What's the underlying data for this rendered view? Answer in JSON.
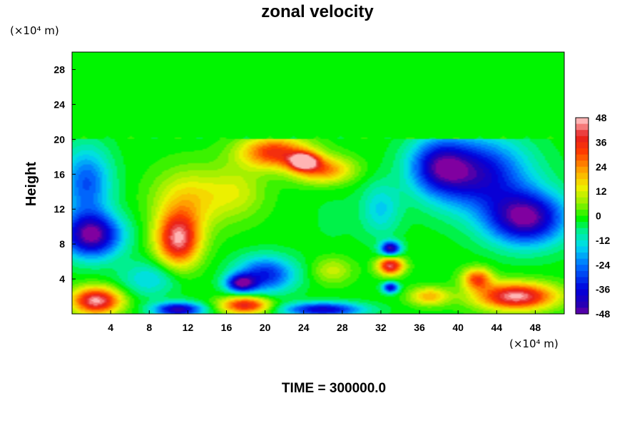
{
  "chart_data": {
    "type": "heatmap",
    "title": "zonal velocity",
    "ylabel": "Height",
    "xlabel": "",
    "x_unit": "(×10⁴ m)",
    "y_unit": "(×10⁴ m)",
    "footer": "TIME = 300000.0",
    "xlim": [
      0,
      51
    ],
    "ylim": [
      0,
      30
    ],
    "x_ticks": [
      4,
      8,
      12,
      16,
      20,
      24,
      28,
      32,
      36,
      40,
      44,
      48
    ],
    "y_ticks": [
      4,
      8,
      12,
      16,
      20,
      24,
      28
    ],
    "colorbar": {
      "ticks": [
        48,
        36,
        24,
        12,
        0,
        -12,
        -24,
        -36,
        -48
      ],
      "min": -48,
      "max": 48
    },
    "upper_layer": {
      "y_range": [
        20,
        30
      ],
      "value": 0
    },
    "features": [
      {
        "x": 11,
        "y": 8.5,
        "value": 45,
        "sx": 2.2,
        "sy": 3.0
      },
      {
        "x": 12,
        "y": 13,
        "value": 18,
        "sx": 3.5,
        "sy": 3.5
      },
      {
        "x": 21,
        "y": 18.5,
        "value": 36,
        "sx": 3.5,
        "sy": 1.8
      },
      {
        "x": 24,
        "y": 17.5,
        "value": 44,
        "sx": 1.5,
        "sy": 1.0
      },
      {
        "x": 26,
        "y": 16.5,
        "value": 28,
        "sx": 3.0,
        "sy": 1.5
      },
      {
        "x": 17,
        "y": 14,
        "value": 12,
        "sx": 3.0,
        "sy": 3.0
      },
      {
        "x": 27,
        "y": 11,
        "value": -2,
        "sx": 3.0,
        "sy": 4.0
      },
      {
        "x": 2,
        "y": 9,
        "value": -48,
        "sx": 3.0,
        "sy": 2.5
      },
      {
        "x": 1.5,
        "y": 15,
        "value": -26,
        "sx": 2.5,
        "sy": 4.0
      },
      {
        "x": 47,
        "y": 11,
        "value": -48,
        "sx": 4.0,
        "sy": 3.0
      },
      {
        "x": 42,
        "y": 16,
        "value": -38,
        "sx": 5.0,
        "sy": 4.0
      },
      {
        "x": 38,
        "y": 17,
        "value": -30,
        "sx": 3.0,
        "sy": 3.0
      },
      {
        "x": 32,
        "y": 12,
        "value": -14,
        "sx": 2.0,
        "sy": 3.0
      },
      {
        "x": 20,
        "y": 4.5,
        "value": -32,
        "sx": 3.0,
        "sy": 2.0
      },
      {
        "x": 17.5,
        "y": 3.5,
        "value": -40,
        "sx": 1.5,
        "sy": 1.0
      },
      {
        "x": 33,
        "y": 7.5,
        "value": -44,
        "sx": 1.0,
        "sy": 0.8
      },
      {
        "x": 33,
        "y": 5.5,
        "value": 44,
        "sx": 1.3,
        "sy": 1.0
      },
      {
        "x": 33,
        "y": 3,
        "value": -38,
        "sx": 0.8,
        "sy": 0.6
      },
      {
        "x": 2.5,
        "y": 1.5,
        "value": 48,
        "sx": 2.5,
        "sy": 1.5
      },
      {
        "x": 46,
        "y": 2,
        "value": 48,
        "sx": 4.0,
        "sy": 1.5
      },
      {
        "x": 42,
        "y": 4,
        "value": 32,
        "sx": 1.5,
        "sy": 1.2
      },
      {
        "x": 18,
        "y": 1,
        "value": 40,
        "sx": 2.5,
        "sy": 1.0
      },
      {
        "x": 11,
        "y": 0.5,
        "value": -42,
        "sx": 2.5,
        "sy": 0.8
      },
      {
        "x": 26,
        "y": 0.5,
        "value": -38,
        "sx": 4.0,
        "sy": 0.8
      },
      {
        "x": 37,
        "y": 2,
        "value": 22,
        "sx": 2.0,
        "sy": 1.0
      },
      {
        "x": 27,
        "y": 5,
        "value": 12,
        "sx": 2.0,
        "sy": 1.5
      },
      {
        "x": 8,
        "y": 4,
        "value": -14,
        "sx": 3.0,
        "sy": 2.0
      }
    ]
  }
}
